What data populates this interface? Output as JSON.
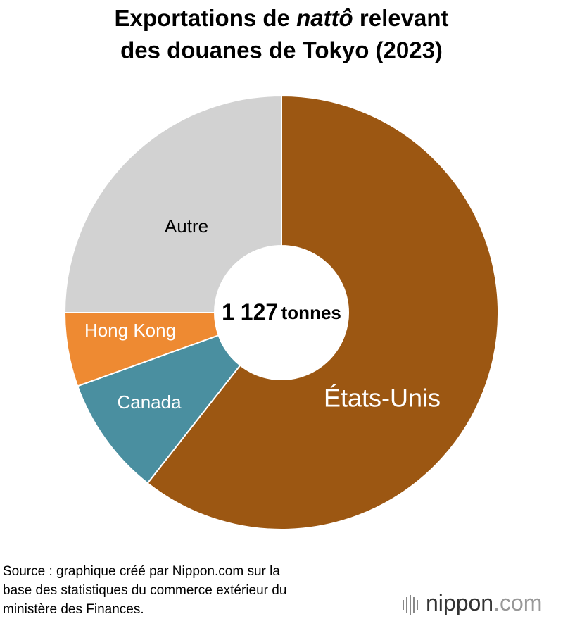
{
  "chart_data": {
    "type": "donut",
    "title": [
      "Exportations de",
      "nattô",
      "relevant",
      "des douanes de Tokyo (2023)"
    ],
    "categories": [
      "États-Unis",
      "Canada",
      "Hong Kong",
      "Autre"
    ],
    "values": [
      60.6,
      8.9,
      5.5,
      25.0
    ],
    "colors": [
      "#9c5712",
      "#4a8fa0",
      "#ee8a32",
      "#d2d2d2"
    ],
    "label_colors": [
      "#ffffff",
      "#ffffff",
      "#ffffff",
      "#000000"
    ],
    "total": 1127,
    "total_label": "1 127",
    "total_unit": "tonnes",
    "source": [
      "Source : graphique créé par Nippon.com sur la",
      "base des statistiques du commerce extérieur du",
      "ministère des Finances."
    ],
    "logo": [
      "nippon",
      ".com"
    ]
  }
}
